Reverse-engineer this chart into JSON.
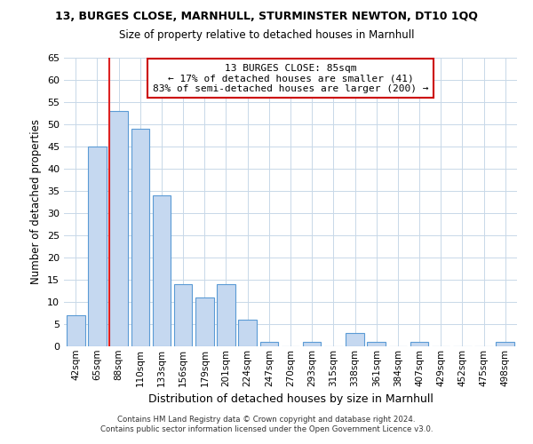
{
  "title": "13, BURGES CLOSE, MARNHULL, STURMINSTER NEWTON, DT10 1QQ",
  "subtitle": "Size of property relative to detached houses in Marnhull",
  "xlabel": "Distribution of detached houses by size in Marnhull",
  "ylabel": "Number of detached properties",
  "bar_labels": [
    "42sqm",
    "65sqm",
    "88sqm",
    "110sqm",
    "133sqm",
    "156sqm",
    "179sqm",
    "201sqm",
    "224sqm",
    "247sqm",
    "270sqm",
    "293sqm",
    "315sqm",
    "338sqm",
    "361sqm",
    "384sqm",
    "407sqm",
    "429sqm",
    "452sqm",
    "475sqm",
    "498sqm"
  ],
  "bar_values": [
    7,
    45,
    53,
    49,
    34,
    14,
    11,
    14,
    6,
    1,
    0,
    1,
    0,
    3,
    1,
    0,
    1,
    0,
    0,
    0,
    1
  ],
  "bar_color": "#c5d8f0",
  "bar_edge_color": "#5b9bd5",
  "highlight_bar_index": 2,
  "highlight_color": "#dd2222",
  "ylim": [
    0,
    65
  ],
  "yticks": [
    0,
    5,
    10,
    15,
    20,
    25,
    30,
    35,
    40,
    45,
    50,
    55,
    60,
    65
  ],
  "annotation_title": "13 BURGES CLOSE: 85sqm",
  "annotation_line1": "← 17% of detached houses are smaller (41)",
  "annotation_line2": "83% of semi-detached houses are larger (200) →",
  "annotation_box_color": "#ffffff",
  "annotation_box_edge": "#cc0000",
  "footer_line1": "Contains HM Land Registry data © Crown copyright and database right 2024.",
  "footer_line2": "Contains public sector information licensed under the Open Government Licence v3.0.",
  "background_color": "#ffffff",
  "grid_color": "#c8d8e8"
}
